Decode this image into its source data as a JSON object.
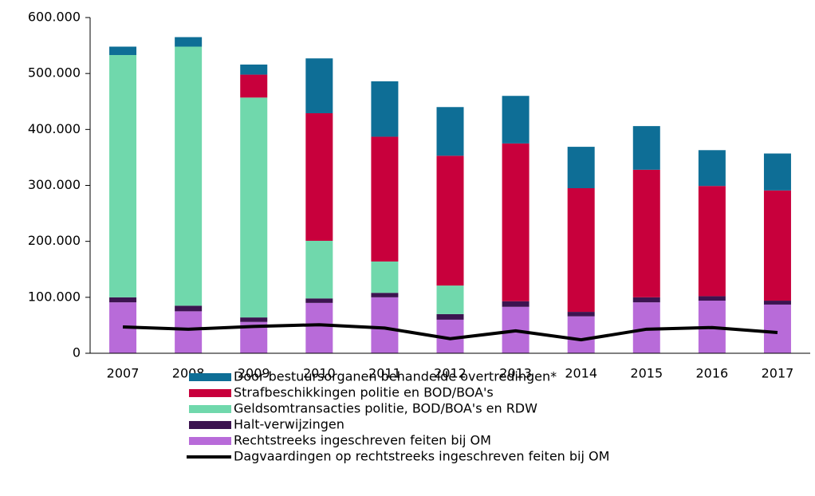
{
  "chart_data": {
    "type": "bar",
    "stacked": true,
    "categories": [
      "2007",
      "2008",
      "2009",
      "2010",
      "2011",
      "2012",
      "2013",
      "2014",
      "2015",
      "2016",
      "2017"
    ],
    "series": [
      {
        "name": "Door bestuursorganen behandelde overtredingen*",
        "color": "#0e6e96",
        "values": [
          15000,
          17000,
          18000,
          98000,
          99000,
          87000,
          85000,
          74000,
          78000,
          64000,
          66000
        ]
      },
      {
        "name": "Strafbeschikkingen politie en BOD/BOA's",
        "color": "#c8003c",
        "values": [
          0,
          0,
          41000,
          228000,
          223000,
          232000,
          282000,
          221000,
          228000,
          197000,
          197000
        ]
      },
      {
        "name": "Geldsomtransacties politie, BOD/BOA's en RDW",
        "color": "#70d8ac",
        "values": [
          433000,
          463000,
          393000,
          103000,
          56000,
          51000,
          0,
          0,
          0,
          0,
          0
        ]
      },
      {
        "name": "Halt-verwijzingen",
        "color": "#3c1450",
        "values": [
          9000,
          10000,
          8000,
          8000,
          8000,
          10000,
          10000,
          8000,
          9000,
          8000,
          7000
        ]
      },
      {
        "name": "Rechtstreeks ingeschreven feiten bij OM",
        "color": "#b86bd9",
        "values": [
          91000,
          75000,
          56000,
          90000,
          100000,
          60000,
          83000,
          66000,
          91000,
          94000,
          87000
        ]
      },
      {
        "name": "Dagvaardingen op rechtstreeks ingeschreven feiten bij OM",
        "color": "#000000",
        "type": "line",
        "values": [
          47000,
          43000,
          48000,
          51000,
          45000,
          26000,
          40000,
          24000,
          43000,
          46000,
          37000
        ]
      }
    ],
    "ylim": [
      0,
      600000
    ],
    "yticks": [
      0,
      {
        "value": 100000,
        "label": "100.000"
      },
      {
        "value": 200000,
        "label": "200.000"
      },
      {
        "value": 300000,
        "label": "300.000"
      },
      {
        "value": 400000,
        "label": "400.000"
      },
      {
        "value": 500000,
        "label": "500.000"
      },
      {
        "value": 600000,
        "label": "600.000"
      }
    ],
    "legend": "bottom"
  }
}
